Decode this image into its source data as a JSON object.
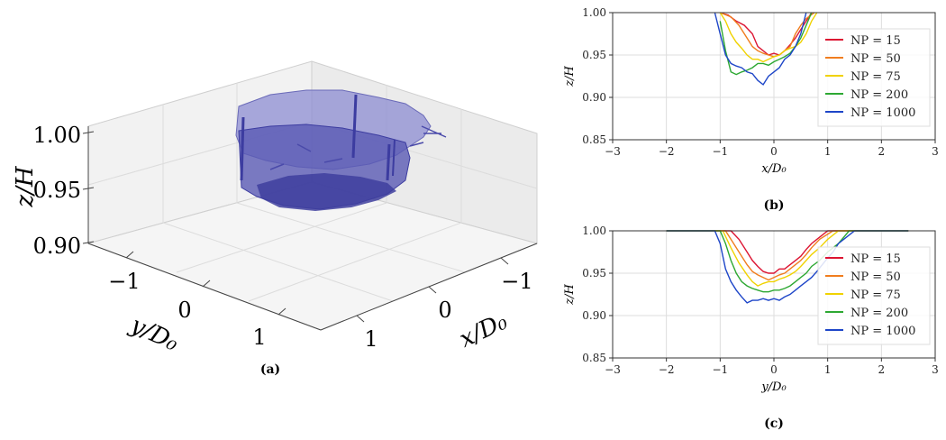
{
  "colors": {
    "NP = 15": "#dc1432",
    "NP = 50": "#f07d1e",
    "NP = 75": "#f0d200",
    "NP = 200": "#2da832",
    "NP = 1000": "#1e46c8",
    "surface": "#5a5ab4",
    "grid": "#dddddd"
  },
  "chart_data": [
    {
      "type": "surface3d",
      "caption": "(a)",
      "xlabel": "x/D₀",
      "ylabel": "y/D₀",
      "zlabel": "z/H",
      "zticks": [
        "0.90",
        "0.95",
        "1.00"
      ],
      "xticks": [
        "1",
        "0",
        "−1"
      ],
      "yticks": [
        "−1",
        "0",
        "1"
      ],
      "zlim": [
        0.9,
        1.0
      ],
      "xlim": [
        -1.5,
        1.5
      ],
      "ylim": [
        -1.5,
        1.5
      ],
      "rim_level": 1.0,
      "bottom_level": 0.94
    },
    {
      "type": "line",
      "caption": "(b)",
      "xlabel": "x/D₀",
      "ylabel": "z/H",
      "xlim": [
        -3,
        3
      ],
      "ylim": [
        0.85,
        1.0
      ],
      "xticks": [
        "−3",
        "−2",
        "−1",
        "0",
        "1",
        "2",
        "3"
      ],
      "yticks": [
        "0.85",
        "0.90",
        "0.95",
        "1.00"
      ],
      "grid": true,
      "legend": "right",
      "series": [
        {
          "name": "NP = 15",
          "x": [
            -1.0,
            -0.85,
            -0.7,
            -0.55,
            -0.4,
            -0.3,
            -0.2,
            -0.1,
            0.0,
            0.1,
            0.2,
            0.3,
            0.4,
            0.5,
            0.6,
            0.7
          ],
          "y": [
            1.0,
            0.997,
            0.99,
            0.985,
            0.975,
            0.96,
            0.955,
            0.95,
            0.952,
            0.95,
            0.955,
            0.962,
            0.97,
            0.98,
            0.99,
            1.0
          ]
        },
        {
          "name": "NP = 50",
          "x": [
            -1.0,
            -0.8,
            -0.65,
            -0.5,
            -0.4,
            -0.3,
            -0.2,
            -0.1,
            0.0,
            0.1,
            0.2,
            0.3,
            0.4,
            0.5,
            0.6,
            0.75
          ],
          "y": [
            1.0,
            0.995,
            0.985,
            0.97,
            0.96,
            0.955,
            0.952,
            0.95,
            0.948,
            0.95,
            0.955,
            0.96,
            0.975,
            0.985,
            0.993,
            1.0
          ]
        },
        {
          "name": "NP = 75",
          "x": [
            -1.0,
            -0.9,
            -0.8,
            -0.7,
            -0.6,
            -0.5,
            -0.4,
            -0.3,
            -0.2,
            -0.1,
            0.0,
            0.1,
            0.2,
            0.3,
            0.4,
            0.5,
            0.6,
            0.7,
            0.8
          ],
          "y": [
            1.0,
            0.99,
            0.975,
            0.965,
            0.958,
            0.95,
            0.945,
            0.945,
            0.942,
            0.945,
            0.948,
            0.95,
            0.955,
            0.958,
            0.96,
            0.965,
            0.975,
            0.99,
            1.0
          ]
        },
        {
          "name": "NP = 200",
          "x": [
            -1.0,
            -0.9,
            -0.8,
            -0.7,
            -0.6,
            -0.5,
            -0.4,
            -0.3,
            -0.2,
            -0.1,
            0.0,
            0.1,
            0.2,
            0.3,
            0.4,
            0.5,
            0.6,
            0.7
          ],
          "y": [
            0.99,
            0.955,
            0.93,
            0.927,
            0.93,
            0.932,
            0.935,
            0.94,
            0.94,
            0.938,
            0.942,
            0.945,
            0.948,
            0.952,
            0.96,
            0.97,
            0.985,
            1.0
          ]
        },
        {
          "name": "NP = 1000",
          "x": [
            -1.1,
            -1.0,
            -0.9,
            -0.8,
            -0.7,
            -0.6,
            -0.5,
            -0.4,
            -0.3,
            -0.2,
            -0.1,
            0.0,
            0.1,
            0.2,
            0.3,
            0.4,
            0.5,
            0.6
          ],
          "y": [
            1.0,
            0.975,
            0.95,
            0.94,
            0.937,
            0.935,
            0.93,
            0.928,
            0.92,
            0.915,
            0.925,
            0.93,
            0.935,
            0.945,
            0.95,
            0.96,
            0.975,
            1.0
          ]
        }
      ]
    },
    {
      "type": "line",
      "caption": "(c)",
      "xlabel": "y/D₀",
      "ylabel": "z/H",
      "xlim": [
        -3,
        3
      ],
      "ylim": [
        0.85,
        1.0
      ],
      "xticks": [
        "−3",
        "−2",
        "−1",
        "0",
        "1",
        "2",
        "3"
      ],
      "yticks": [
        "0.85",
        "0.90",
        "0.95",
        "1.00"
      ],
      "grid": true,
      "legend": "right",
      "series": [
        {
          "name": "NP = 15",
          "x": [
            -2.0,
            -0.8,
            -0.65,
            -0.5,
            -0.4,
            -0.3,
            -0.2,
            -0.1,
            0.0,
            0.1,
            0.2,
            0.3,
            0.4,
            0.5,
            0.6,
            0.7,
            0.8,
            1.0,
            2.5
          ],
          "y": [
            1.0,
            1.0,
            0.99,
            0.975,
            0.965,
            0.958,
            0.952,
            0.95,
            0.95,
            0.955,
            0.955,
            0.96,
            0.965,
            0.97,
            0.978,
            0.985,
            0.99,
            1.0,
            1.0
          ]
        },
        {
          "name": "NP = 50",
          "x": [
            -2.0,
            -0.9,
            -0.75,
            -0.6,
            -0.5,
            -0.4,
            -0.3,
            -0.2,
            -0.1,
            0.0,
            0.1,
            0.2,
            0.3,
            0.4,
            0.5,
            0.6,
            0.7,
            0.85,
            1.1,
            2.5
          ],
          "y": [
            1.0,
            1.0,
            0.985,
            0.97,
            0.96,
            0.952,
            0.948,
            0.945,
            0.942,
            0.945,
            0.948,
            0.95,
            0.955,
            0.96,
            0.965,
            0.972,
            0.98,
            0.99,
            1.0,
            1.0
          ]
        },
        {
          "name": "NP = 75",
          "x": [
            -2.0,
            -0.95,
            -0.8,
            -0.65,
            -0.5,
            -0.4,
            -0.3,
            -0.2,
            -0.1,
            0.0,
            0.1,
            0.2,
            0.3,
            0.4,
            0.5,
            0.6,
            0.7,
            0.85,
            1.0,
            1.2,
            2.5
          ],
          "y": [
            1.0,
            1.0,
            0.98,
            0.962,
            0.948,
            0.94,
            0.935,
            0.938,
            0.94,
            0.94,
            0.943,
            0.945,
            0.948,
            0.952,
            0.958,
            0.965,
            0.972,
            0.98,
            0.99,
            1.0,
            1.0
          ]
        },
        {
          "name": "NP = 200",
          "x": [
            -2.0,
            -1.0,
            -0.9,
            -0.8,
            -0.7,
            -0.6,
            -0.5,
            -0.4,
            -0.3,
            -0.2,
            -0.1,
            0.0,
            0.1,
            0.2,
            0.3,
            0.4,
            0.5,
            0.6,
            0.7,
            0.85,
            1.0,
            1.2,
            1.4,
            2.5
          ],
          "y": [
            1.0,
            1.0,
            0.985,
            0.965,
            0.95,
            0.94,
            0.935,
            0.932,
            0.93,
            0.928,
            0.928,
            0.93,
            0.93,
            0.932,
            0.935,
            0.94,
            0.945,
            0.95,
            0.958,
            0.965,
            0.975,
            0.985,
            1.0,
            1.0
          ]
        },
        {
          "name": "NP = 1000",
          "x": [
            -2.0,
            -1.1,
            -1.0,
            -0.9,
            -0.8,
            -0.7,
            -0.6,
            -0.5,
            -0.4,
            -0.3,
            -0.2,
            -0.1,
            0.0,
            0.1,
            0.2,
            0.3,
            0.4,
            0.5,
            0.6,
            0.7,
            0.8,
            0.9,
            1.0,
            1.1,
            1.2,
            1.4,
            1.5,
            2.5
          ],
          "y": [
            1.0,
            1.0,
            0.985,
            0.955,
            0.94,
            0.93,
            0.922,
            0.915,
            0.918,
            0.918,
            0.92,
            0.918,
            0.92,
            0.918,
            0.922,
            0.925,
            0.93,
            0.935,
            0.94,
            0.945,
            0.952,
            0.96,
            0.968,
            0.975,
            0.985,
            0.995,
            1.0,
            1.0
          ]
        }
      ]
    }
  ]
}
